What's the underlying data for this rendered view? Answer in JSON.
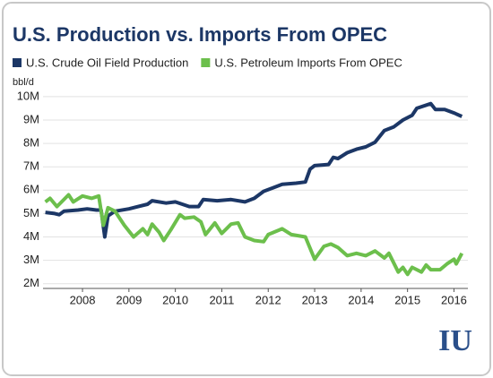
{
  "chart_data": {
    "type": "line",
    "title": "U.S. Production vs. Imports From OPEC",
    "y_label": "bbl/d",
    "logo": "IU",
    "xlim": [
      2007.15,
      2016.3
    ],
    "xticks": [
      2008,
      2009,
      2010,
      2011,
      2012,
      2013,
      2014,
      2015,
      2016
    ],
    "ylim": [
      1.8,
      10.3
    ],
    "yticks": [
      {
        "value": 2,
        "label": "2M"
      },
      {
        "value": 3,
        "label": "3M"
      },
      {
        "value": 4,
        "label": "4M"
      },
      {
        "value": 5,
        "label": "5M"
      },
      {
        "value": 6,
        "label": "6M"
      },
      {
        "value": 7,
        "label": "7M"
      },
      {
        "value": 8,
        "label": "8M"
      },
      {
        "value": 9,
        "label": "9M"
      },
      {
        "value": 10,
        "label": "10M"
      }
    ],
    "grid": true,
    "series": [
      {
        "name": "U.S. Crude Oil Field Production",
        "color": "#1c3766",
        "x": [
          2007.2,
          2007.4,
          2007.5,
          2007.6,
          2007.9,
          2008.1,
          2008.3,
          2008.4,
          2008.48,
          2008.55,
          2008.7,
          2009.0,
          2009.2,
          2009.4,
          2009.5,
          2009.8,
          2010.0,
          2010.3,
          2010.5,
          2010.6,
          2010.9,
          2011.2,
          2011.5,
          2011.7,
          2011.9,
          2012.1,
          2012.3,
          2012.6,
          2012.8,
          2012.9,
          2013.0,
          2013.3,
          2013.4,
          2013.5,
          2013.7,
          2013.9,
          2014.1,
          2014.3,
          2014.5,
          2014.7,
          2014.9,
          2015.1,
          2015.2,
          2015.5,
          2015.6,
          2015.8,
          2016.0,
          2016.17
        ],
        "values": [
          5.05,
          5.0,
          4.95,
          5.1,
          5.15,
          5.2,
          5.15,
          5.15,
          4.0,
          4.9,
          5.1,
          5.2,
          5.3,
          5.4,
          5.55,
          5.45,
          5.5,
          5.3,
          5.3,
          5.6,
          5.55,
          5.6,
          5.5,
          5.65,
          5.95,
          6.1,
          6.25,
          6.3,
          6.35,
          6.9,
          7.05,
          7.1,
          7.4,
          7.35,
          7.6,
          7.75,
          7.85,
          8.05,
          8.55,
          8.7,
          9.0,
          9.2,
          9.5,
          9.7,
          9.45,
          9.45,
          9.3,
          9.15
        ]
      },
      {
        "name": "U.S. Petroleum Imports From OPEC",
        "color": "#6cbf4c",
        "x": [
          2007.2,
          2007.3,
          2007.45,
          2007.7,
          2007.8,
          2008.0,
          2008.2,
          2008.35,
          2008.45,
          2008.55,
          2008.7,
          2008.9,
          2009.1,
          2009.3,
          2009.4,
          2009.5,
          2009.65,
          2009.75,
          2009.9,
          2010.1,
          2010.2,
          2010.4,
          2010.55,
          2010.65,
          2010.85,
          2011.0,
          2011.2,
          2011.35,
          2011.5,
          2011.7,
          2011.9,
          2012.0,
          2012.3,
          2012.5,
          2012.8,
          2013.0,
          2013.2,
          2013.35,
          2013.5,
          2013.7,
          2013.9,
          2014.1,
          2014.3,
          2014.5,
          2014.6,
          2014.8,
          2014.9,
          2015.0,
          2015.1,
          2015.3,
          2015.4,
          2015.5,
          2015.7,
          2015.85,
          2016.0,
          2016.05,
          2016.17
        ],
        "values": [
          5.5,
          5.65,
          5.3,
          5.8,
          5.5,
          5.75,
          5.65,
          5.75,
          4.5,
          5.25,
          5.1,
          4.5,
          4.0,
          4.35,
          4.1,
          4.55,
          4.2,
          3.85,
          4.3,
          4.95,
          4.8,
          4.85,
          4.65,
          4.1,
          4.6,
          4.15,
          4.55,
          4.6,
          4.0,
          3.85,
          3.8,
          4.1,
          4.35,
          4.1,
          4.0,
          3.05,
          3.6,
          3.7,
          3.55,
          3.2,
          3.3,
          3.2,
          3.4,
          3.1,
          3.3,
          2.5,
          2.7,
          2.4,
          2.7,
          2.5,
          2.8,
          2.6,
          2.6,
          2.85,
          3.05,
          2.85,
          3.3
        ]
      }
    ]
  }
}
